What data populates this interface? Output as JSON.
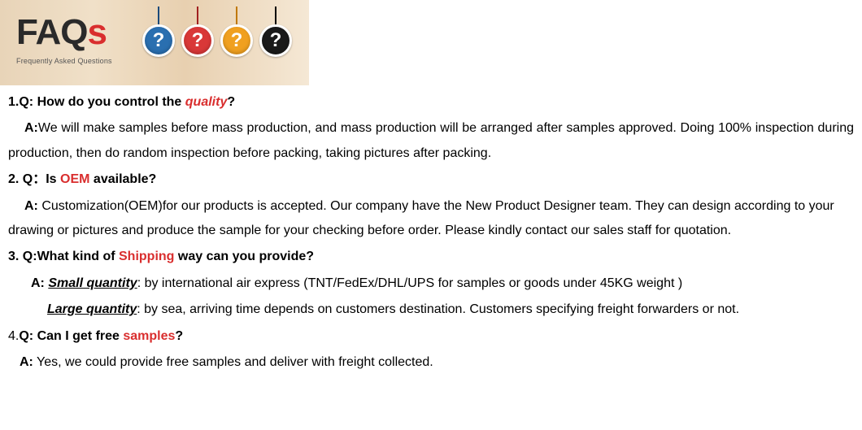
{
  "banner": {
    "title_main": "FAQ",
    "title_s": "s",
    "subtitle": "Frequently Asked Questions",
    "qmark_glyph": "?",
    "circles": [
      {
        "bg": "#2a6fb0",
        "string": "#1a4a7a"
      },
      {
        "bg": "#d93838",
        "string": "#a02020"
      },
      {
        "bg": "#f0a020",
        "string": "#c07800"
      },
      {
        "bg": "#1a1a1a",
        "string": "#000000"
      }
    ]
  },
  "faq": {
    "q1_prefix": "1.Q: How do you control the ",
    "q1_hl": "quality",
    "q1_suffix": "?",
    "a1_prefix": "A:",
    "a1_body": "We will make samples before mass production, and mass production will be arranged after samples approved. Doing 100% inspection during production, then do random inspection before packing, taking pictures after packing.",
    "q2_prefix": "2. Q：Is ",
    "q2_hl": "OEM",
    "q2_suffix": " available?",
    "a2_prefix": "A:",
    "a2_body": " Customization(OEM)for our products is accepted. Our company have the New Product Designer team. They can design according to your drawing or pictures and produce the sample for your checking before order. Please kindly contact our sales staff for quotation.",
    "q3_prefix": "3. Q:What kind of ",
    "q3_hl": "Shipping",
    "q3_suffix": " way can you provide?",
    "a3_prefix": "A: ",
    "a3_small_label": "Small quantity",
    "a3_small_body": ": by international air express (TNT/FedEx/DHL/UPS for samples or goods under 45KG weight )",
    "a3_large_label": "Large quantity",
    "a3_large_body": ": by sea, arriving time depends on customers destination. Customers specifying freight forwarders or not.",
    "q4_prefix": "4.",
    "q4_q": "Q: Can I get free ",
    "q4_hl": "samples",
    "q4_suffix": "?",
    "a4_prefix": "A:",
    "a4_body": " Yes, we could provide free samples and deliver with freight collected."
  }
}
